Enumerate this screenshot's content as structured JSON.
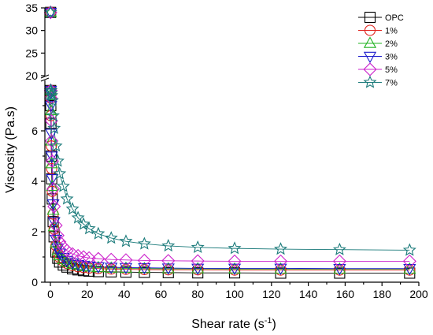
{
  "chart_data": {
    "type": "scatter",
    "title": "",
    "xlabel": "Shear rate (s",
    "xlabel_sup": "-1",
    "xlabel_suffix": ")",
    "ylabel": "Viscosity (Pa.s)",
    "xlim": [
      -3,
      200
    ],
    "ylim_lower": [
      0,
      8
    ],
    "ylim_upper": [
      20,
      35
    ],
    "axis_break": "between 8 and 20",
    "grid": false,
    "legend_position": "top-right",
    "x_ticks": [
      "0",
      "20",
      "40",
      "60",
      "80",
      "100",
      "120",
      "140",
      "160",
      "180",
      "200"
    ],
    "x_tick_values": [
      0,
      20,
      40,
      60,
      80,
      100,
      120,
      140,
      160,
      180,
      200
    ],
    "y_ticks_lower": [
      "0",
      "2",
      "4",
      "6"
    ],
    "y_tick_values_lower": [
      0,
      2,
      4,
      6
    ],
    "y_ticks_upper": [
      "20",
      "25",
      "30",
      "35"
    ],
    "y_tick_values_upper": [
      20,
      25,
      30,
      35
    ],
    "x": [
      0.1,
      0.15,
      0.2,
      0.3,
      0.5,
      0.7,
      1.0,
      1.5,
      2.0,
      3.0,
      4.0,
      5.0,
      7.0,
      9.0,
      12.0,
      15.0,
      18.0,
      21.0,
      26.0,
      33.0,
      41.0,
      51.0,
      64.0,
      80.0,
      100.0,
      125.0,
      157.0,
      195.0
    ],
    "series": [
      {
        "name": "OPC",
        "color": "#000000",
        "marker": "square",
        "values": [
          34.0,
          7.6,
          7.0,
          6.3,
          5.0,
          4.1,
          3.3,
          2.4,
          1.8,
          1.2,
          0.95,
          0.8,
          0.68,
          0.6,
          0.53,
          0.49,
          0.46,
          0.44,
          0.42,
          0.41,
          0.4,
          0.39,
          0.38,
          0.37,
          0.37,
          0.36,
          0.36,
          0.36
        ]
      },
      {
        "name": "1%",
        "color": "#e0201a",
        "marker": "circle",
        "values": [
          34.0,
          7.6,
          7.3,
          6.6,
          5.4,
          4.5,
          3.6,
          2.7,
          2.1,
          1.45,
          1.15,
          0.98,
          0.83,
          0.74,
          0.66,
          0.61,
          0.58,
          0.56,
          0.54,
          0.52,
          0.51,
          0.5,
          0.49,
          0.49,
          0.48,
          0.48,
          0.48,
          0.48
        ]
      },
      {
        "name": "2%",
        "color": "#22b322",
        "marker": "triangle-up",
        "values": [
          34.0,
          7.6,
          7.4,
          6.8,
          5.6,
          4.7,
          3.8,
          2.85,
          2.2,
          1.55,
          1.25,
          1.05,
          0.9,
          0.8,
          0.71,
          0.66,
          0.62,
          0.6,
          0.58,
          0.56,
          0.55,
          0.54,
          0.53,
          0.53,
          0.52,
          0.52,
          0.52,
          0.52
        ]
      },
      {
        "name": "3%",
        "color": "#1c1ccc",
        "marker": "triangle-down",
        "values": [
          34.0,
          7.6,
          7.5,
          7.0,
          5.9,
          5.0,
          4.1,
          3.1,
          2.4,
          1.7,
          1.35,
          1.15,
          0.98,
          0.86,
          0.76,
          0.7,
          0.66,
          0.64,
          0.61,
          0.59,
          0.58,
          0.57,
          0.56,
          0.55,
          0.55,
          0.55,
          0.54,
          0.54
        ]
      },
      {
        "name": "5%",
        "color": "#cc22cc",
        "marker": "diamond",
        "values": [
          34.0,
          7.6,
          7.6,
          7.3,
          6.4,
          5.6,
          4.8,
          3.7,
          3.0,
          2.25,
          1.85,
          1.6,
          1.4,
          1.25,
          1.12,
          1.05,
          1.0,
          0.96,
          0.93,
          0.9,
          0.88,
          0.86,
          0.85,
          0.84,
          0.83,
          0.83,
          0.83,
          0.83
        ]
      },
      {
        "name": "7%",
        "color": "#1a7a7a",
        "marker": "star",
        "values": [
          34.0,
          7.6,
          7.6,
          7.6,
          7.5,
          7.4,
          7.2,
          6.6,
          6.1,
          5.4,
          4.8,
          4.3,
          3.8,
          3.3,
          2.9,
          2.55,
          2.3,
          2.12,
          1.92,
          1.75,
          1.62,
          1.52,
          1.44,
          1.38,
          1.34,
          1.31,
          1.29,
          1.27
        ]
      }
    ]
  }
}
